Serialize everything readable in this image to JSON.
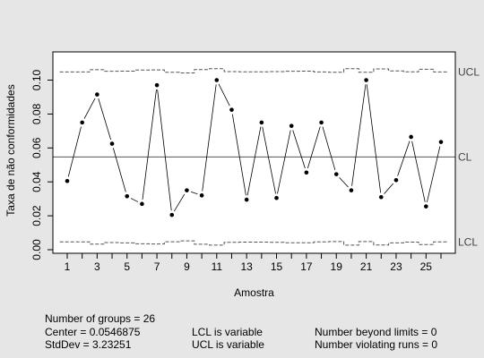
{
  "chart_data": {
    "type": "line",
    "chart_kind": "p-chart (quality control chart)",
    "xlabel": "Amostra",
    "ylabel": "Taxa de não conformidades",
    "xlim": [
      0.5,
      26.5
    ],
    "ylim": [
      0,
      0.11
    ],
    "x_ticks": [
      1,
      3,
      5,
      7,
      9,
      11,
      13,
      15,
      17,
      19,
      21,
      23,
      25
    ],
    "x_tick_labels": [
      "1",
      "3",
      "5",
      "7",
      "9",
      "11",
      "13",
      "15",
      "17",
      "19",
      "21",
      "23",
      "25"
    ],
    "x_minor_ticks": [
      2,
      4,
      6,
      8,
      10,
      12,
      14,
      16,
      18,
      20,
      22,
      24,
      26
    ],
    "y_ticks": [
      0.0,
      0.02,
      0.04,
      0.06,
      0.08,
      0.1
    ],
    "y_tick_labels": [
      "0.00",
      "0.02",
      "0.04",
      "0.06",
      "0.08",
      "0.10"
    ],
    "x": [
      1,
      2,
      3,
      4,
      5,
      6,
      7,
      8,
      9,
      10,
      11,
      12,
      13,
      14,
      15,
      16,
      17,
      18,
      19,
      20,
      21,
      22,
      23,
      24,
      25,
      26
    ],
    "values": [
      0.0405,
      0.075,
      0.0915,
      0.0625,
      0.0315,
      0.027,
      0.097,
      0.0205,
      0.035,
      0.032,
      0.1,
      0.0825,
      0.0295,
      0.075,
      0.0305,
      0.073,
      0.0455,
      0.075,
      0.0445,
      0.035,
      0.1,
      0.031,
      0.041,
      0.0665,
      0.0255,
      0.0635
    ],
    "center_line": 0.0546875,
    "ucl": [
      0.1048,
      0.1048,
      0.1061,
      0.1052,
      0.1053,
      0.1059,
      0.106,
      0.1046,
      0.1042,
      0.1062,
      0.1067,
      0.105,
      0.1049,
      0.1049,
      0.105,
      0.1052,
      0.1053,
      0.1048,
      0.1046,
      0.1067,
      0.1046,
      0.1066,
      0.1054,
      0.1049,
      0.1064,
      0.1048
    ],
    "lcl": [
      0.0046,
      0.0046,
      0.0033,
      0.0042,
      0.004,
      0.0035,
      0.0034,
      0.0047,
      0.0052,
      0.0032,
      0.0027,
      0.0044,
      0.0045,
      0.0045,
      0.0044,
      0.0041,
      0.0041,
      0.0046,
      0.0048,
      0.0027,
      0.0048,
      0.0028,
      0.004,
      0.0045,
      0.003,
      0.0046
    ],
    "limit_labels": {
      "ucl": "UCL",
      "cl": "CL",
      "lcl": "LCL"
    },
    "grid": false,
    "colors": {
      "background": "#e6e6e6",
      "plot_bg": "#ffffff",
      "line": "#000000",
      "center": "#555555",
      "limits": "#555555"
    }
  },
  "stats": {
    "groups": "Number of groups = 26",
    "center": "Center = 0.0546875",
    "stddev": "StdDev = 3.23251",
    "lcl_note": "LCL is variable",
    "ucl_note": "UCL is variable",
    "beyond": "Number beyond limits = 0",
    "runs": "Number violating runs = 0"
  }
}
